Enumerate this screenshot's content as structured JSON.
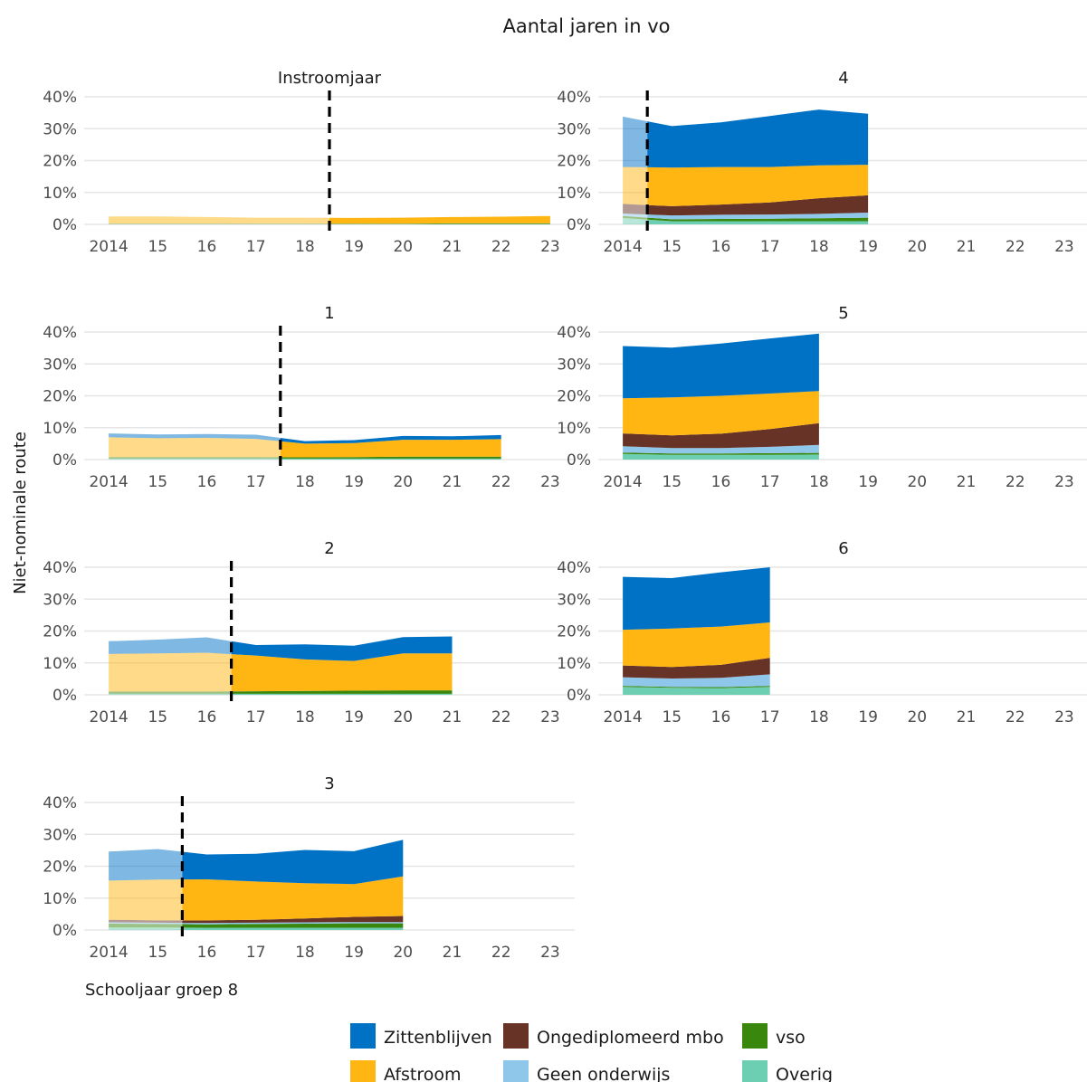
{
  "chart_data": {
    "type": "area",
    "title": "Aantal jaren in vo",
    "ylabel": "Niet-nominale route",
    "xlabel": "Schooljaar groep 8",
    "ylim": [
      0,
      40
    ],
    "y_ticks": [
      "0%",
      "10%",
      "20%",
      "30%",
      "40%"
    ],
    "x_ticks": [
      "2014",
      "15",
      "16",
      "17",
      "18",
      "19",
      "20",
      "21",
      "22",
      "23"
    ],
    "grid": true,
    "legend_position": "bottom",
    "series": [
      {
        "key": "overig",
        "name": "Overig",
        "color": "#6dcfb2"
      },
      {
        "key": "vso",
        "name": "vso",
        "color": "#39870c"
      },
      {
        "key": "geen",
        "name": "Geen onderwijs",
        "color": "#8fc7ea"
      },
      {
        "key": "mbo",
        "name": "Ongediplomeerd mbo",
        "color": "#673327"
      },
      {
        "key": "afstroom",
        "name": "Afstroom",
        "color": "#ffb612"
      },
      {
        "key": "zitten",
        "name": "Zittenblijven",
        "color": "#0072c6"
      }
    ],
    "legend_order": [
      "zitten",
      "afstroom",
      "mbo",
      "geen",
      "vso",
      "overig"
    ],
    "panels": [
      {
        "title": "Instroomjaar",
        "vline": 18.5,
        "x": [
          14,
          15,
          16,
          17,
          18,
          19,
          20,
          21,
          22,
          23
        ],
        "values": {
          "overig": [
            0.1,
            0.1,
            0.1,
            0.1,
            0.1,
            0.1,
            0.1,
            0.1,
            0.1,
            0.1
          ],
          "vso": [
            0.1,
            0.1,
            0.1,
            0.1,
            0.1,
            0.1,
            0.1,
            0.2,
            0.2,
            0.2
          ],
          "geen": [
            0,
            0,
            0,
            0,
            0,
            0,
            0,
            0,
            0,
            0
          ],
          "mbo": [
            0,
            0,
            0,
            0,
            0,
            0,
            0,
            0,
            0,
            0
          ],
          "afstroom": [
            2.3,
            2.3,
            2.1,
            1.9,
            1.9,
            1.8,
            1.9,
            2.0,
            2.1,
            2.3
          ],
          "zitten": [
            0,
            0,
            0,
            0,
            0,
            0,
            0,
            0,
            0,
            0
          ]
        }
      },
      {
        "title": "1",
        "vline": 17.5,
        "x": [
          14,
          15,
          16,
          17,
          18,
          19,
          20,
          21,
          22
        ],
        "values": {
          "overig": [
            0.3,
            0.3,
            0.3,
            0.3,
            0.3,
            0.3,
            0.3,
            0.3,
            0.3
          ],
          "vso": [
            0.5,
            0.5,
            0.5,
            0.5,
            0.4,
            0.5,
            0.6,
            0.6,
            0.6
          ],
          "geen": [
            0,
            0,
            0,
            0,
            0,
            0,
            0,
            0,
            0
          ],
          "mbo": [
            0,
            0,
            0,
            0,
            0,
            0,
            0,
            0,
            0
          ],
          "afstroom": [
            6.2,
            5.9,
            6.0,
            5.7,
            4.3,
            4.4,
            5.3,
            5.3,
            5.5
          ],
          "zitten": [
            1.2,
            1.2,
            1.2,
            1.3,
            0.8,
            0.9,
            1.2,
            1.1,
            1.3
          ]
        }
      },
      {
        "title": "2",
        "vline": 16.5,
        "x": [
          14,
          15,
          16,
          17,
          18,
          19,
          20,
          21
        ],
        "values": {
          "overig": [
            0.3,
            0.3,
            0.3,
            0.3,
            0.3,
            0.3,
            0.3,
            0.3
          ],
          "vso": [
            0.7,
            0.7,
            0.7,
            0.8,
            0.9,
            1.0,
            1.1,
            1.1
          ],
          "geen": [
            0,
            0,
            0,
            0,
            0,
            0,
            0,
            0
          ],
          "mbo": [
            0,
            0,
            0,
            0,
            0,
            0,
            0,
            0
          ],
          "afstroom": [
            11.8,
            12.0,
            12.2,
            11.2,
            9.9,
            9.3,
            11.6,
            11.6
          ],
          "zitten": [
            4.0,
            4.3,
            4.8,
            3.3,
            4.7,
            4.8,
            5.1,
            5.3
          ]
        }
      },
      {
        "title": "3",
        "vline": 15.5,
        "x": [
          14,
          15,
          16,
          17,
          18,
          19,
          20
        ],
        "values": {
          "overig": [
            0.8,
            0.8,
            0.7,
            0.7,
            0.7,
            0.7,
            0.7
          ],
          "vso": [
            1.2,
            1.1,
            1.1,
            1.2,
            1.3,
            1.4,
            1.4
          ],
          "geen": [
            0.4,
            0.4,
            0.4,
            0.4,
            0.4,
            0.4,
            0.4
          ],
          "mbo": [
            0.8,
            0.7,
            0.8,
            0.9,
            1.2,
            1.6,
            1.9
          ],
          "afstroom": [
            12.3,
            12.8,
            12.9,
            12.0,
            11.1,
            10.3,
            12.4
          ],
          "zitten": [
            9.1,
            9.6,
            7.8,
            8.7,
            10.4,
            10.3,
            11.5
          ]
        }
      },
      {
        "title": "4",
        "vline": 14.5,
        "x": [
          14,
          15,
          16,
          17,
          18,
          19
        ],
        "values": {
          "overig": [
            2.0,
            1.0,
            1.0,
            1.0,
            1.0,
            1.0
          ],
          "vso": [
            0.6,
            0.6,
            0.7,
            0.8,
            0.9,
            1.1
          ],
          "geen": [
            0.8,
            1.2,
            1.3,
            1.3,
            1.4,
            1.6
          ],
          "mbo": [
            3.0,
            2.9,
            3.2,
            3.8,
            4.9,
            5.4
          ],
          "afstroom": [
            11.6,
            12.1,
            11.8,
            11.1,
            10.3,
            9.6
          ],
          "zitten": [
            15.8,
            13.0,
            14.0,
            16.0,
            17.5,
            16.0
          ]
        }
      },
      {
        "title": "5",
        "vline": null,
        "x": [
          14,
          15,
          16,
          17,
          18
        ],
        "values": {
          "overig": [
            1.8,
            1.5,
            1.5,
            1.5,
            1.6
          ],
          "vso": [
            0.4,
            0.4,
            0.4,
            0.5,
            0.5
          ],
          "geen": [
            2.0,
            1.7,
            1.7,
            2.0,
            2.5
          ],
          "mbo": [
            4.0,
            4.0,
            4.5,
            5.6,
            6.8
          ],
          "afstroom": [
            11.0,
            11.9,
            11.9,
            11.1,
            10.1
          ],
          "zitten": [
            16.4,
            15.6,
            16.4,
            17.3,
            18.0
          ]
        }
      },
      {
        "title": "6",
        "vline": null,
        "x": [
          14,
          15,
          16,
          17
        ],
        "values": {
          "overig": [
            2.5,
            2.2,
            2.1,
            2.5
          ],
          "vso": [
            0.3,
            0.3,
            0.3,
            0.3
          ],
          "geen": [
            2.7,
            2.6,
            2.9,
            3.6
          ],
          "mbo": [
            3.7,
            3.6,
            4.1,
            5.2
          ],
          "afstroom": [
            11.2,
            12.1,
            12.0,
            11.1
          ],
          "zitten": [
            16.6,
            15.8,
            17.0,
            17.3
          ]
        }
      }
    ]
  }
}
